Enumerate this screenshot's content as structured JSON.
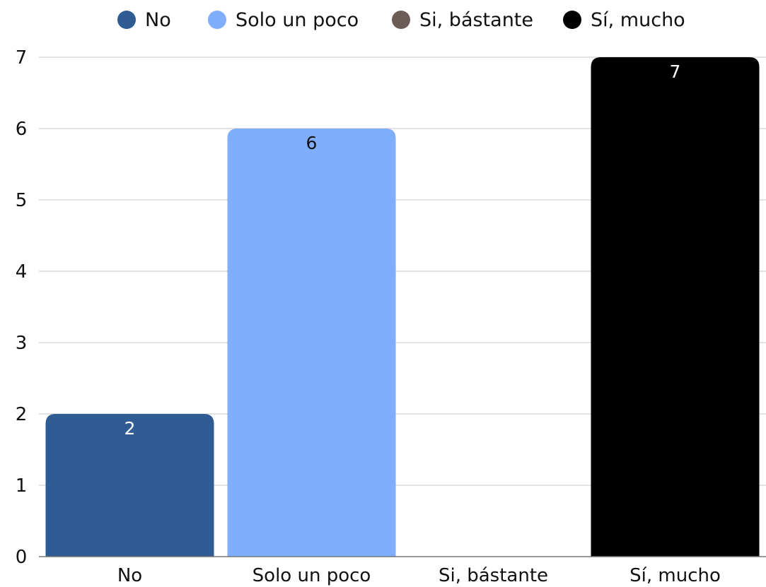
{
  "chart_data": {
    "type": "bar",
    "categories": [
      "No",
      "Solo un poco",
      "Si, bástante",
      "Sí, mucho"
    ],
    "values": [
      2,
      6,
      0,
      7
    ],
    "colors": [
      "#2e5c93",
      "#7faefc",
      "#6b5c58",
      "#000000"
    ],
    "label_colors": [
      "#ffffff",
      "#111111",
      "#ffffff",
      "#ffffff"
    ],
    "legend": {
      "position": "top",
      "entries": [
        "No",
        "Solo un poco",
        "Si, bástante",
        "Sí, mucho"
      ]
    },
    "y_ticks": [
      "0",
      "1",
      "2",
      "3",
      "4",
      "5",
      "6",
      "7"
    ],
    "ylim": [
      0,
      7
    ],
    "grid": true,
    "data_labels": [
      "2",
      "6",
      "",
      "7"
    ],
    "title": "",
    "xlabel": "",
    "ylabel": ""
  }
}
